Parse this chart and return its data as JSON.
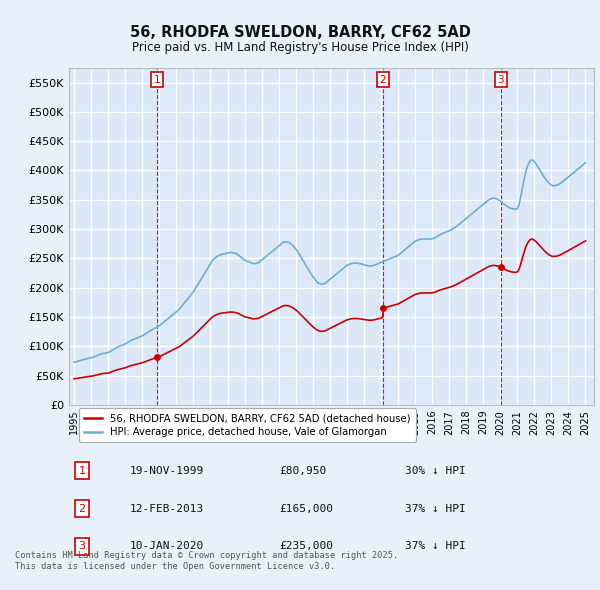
{
  "title": "56, RHODFA SWELDON, BARRY, CF62 5AD",
  "subtitle": "Price paid vs. HM Land Registry's House Price Index (HPI)",
  "background_color": "#e8f0fa",
  "plot_bg_color": "#dce8f8",
  "grid_color": "#ffffff",
  "hpi_color": "#6aaed6",
  "price_color": "#cc0000",
  "vline_color": "#cc0000",
  "ylim": [
    0,
    575000
  ],
  "yticks": [
    0,
    50000,
    100000,
    150000,
    200000,
    250000,
    300000,
    350000,
    400000,
    450000,
    500000,
    550000
  ],
  "xlim_start": 1994.7,
  "xlim_end": 2025.5,
  "xticks": [
    1995,
    1996,
    1997,
    1998,
    1999,
    2000,
    2001,
    2002,
    2003,
    2004,
    2005,
    2006,
    2007,
    2008,
    2009,
    2010,
    2011,
    2012,
    2013,
    2014,
    2015,
    2016,
    2017,
    2018,
    2019,
    2020,
    2021,
    2022,
    2023,
    2024,
    2025
  ],
  "sale_dates": [
    1999.88,
    2013.12,
    2020.03
  ],
  "sale_prices": [
    80950,
    165000,
    235000
  ],
  "sale_labels": [
    "1",
    "2",
    "3"
  ],
  "legend_label_price": "56, RHODFA SWELDON, BARRY, CF62 5AD (detached house)",
  "legend_label_hpi": "HPI: Average price, detached house, Vale of Glamorgan",
  "table_rows": [
    [
      "1",
      "19-NOV-1999",
      "£80,950",
      "30% ↓ HPI"
    ],
    [
      "2",
      "12-FEB-2013",
      "£165,000",
      "37% ↓ HPI"
    ],
    [
      "3",
      "10-JAN-2020",
      "£235,000",
      "37% ↓ HPI"
    ]
  ],
  "footer": "Contains HM Land Registry data © Crown copyright and database right 2025.\nThis data is licensed under the Open Government Licence v3.0.",
  "hpi_x": [
    1995.0,
    1995.083,
    1995.167,
    1995.25,
    1995.333,
    1995.417,
    1995.5,
    1995.583,
    1995.667,
    1995.75,
    1995.833,
    1995.917,
    1996.0,
    1996.083,
    1996.167,
    1996.25,
    1996.333,
    1996.417,
    1996.5,
    1996.583,
    1996.667,
    1996.75,
    1996.833,
    1996.917,
    1997.0,
    1997.083,
    1997.167,
    1997.25,
    1997.333,
    1997.417,
    1997.5,
    1997.583,
    1997.667,
    1997.75,
    1997.833,
    1997.917,
    1998.0,
    1998.083,
    1998.167,
    1998.25,
    1998.333,
    1998.417,
    1998.5,
    1998.583,
    1998.667,
    1998.75,
    1998.833,
    1998.917,
    1999.0,
    1999.083,
    1999.167,
    1999.25,
    1999.333,
    1999.417,
    1999.5,
    1999.583,
    1999.667,
    1999.75,
    1999.833,
    1999.917,
    2000.0,
    2000.083,
    2000.167,
    2000.25,
    2000.333,
    2000.417,
    2000.5,
    2000.583,
    2000.667,
    2000.75,
    2000.833,
    2000.917,
    2001.0,
    2001.083,
    2001.167,
    2001.25,
    2001.333,
    2001.417,
    2001.5,
    2001.583,
    2001.667,
    2001.75,
    2001.833,
    2001.917,
    2002.0,
    2002.083,
    2002.167,
    2002.25,
    2002.333,
    2002.417,
    2002.5,
    2002.583,
    2002.667,
    2002.75,
    2002.833,
    2002.917,
    2003.0,
    2003.083,
    2003.167,
    2003.25,
    2003.333,
    2003.417,
    2003.5,
    2003.583,
    2003.667,
    2003.75,
    2003.833,
    2003.917,
    2004.0,
    2004.083,
    2004.167,
    2004.25,
    2004.333,
    2004.417,
    2004.5,
    2004.583,
    2004.667,
    2004.75,
    2004.833,
    2004.917,
    2005.0,
    2005.083,
    2005.167,
    2005.25,
    2005.333,
    2005.417,
    2005.5,
    2005.583,
    2005.667,
    2005.75,
    2005.833,
    2005.917,
    2006.0,
    2006.083,
    2006.167,
    2006.25,
    2006.333,
    2006.417,
    2006.5,
    2006.583,
    2006.667,
    2006.75,
    2006.833,
    2006.917,
    2007.0,
    2007.083,
    2007.167,
    2007.25,
    2007.333,
    2007.417,
    2007.5,
    2007.583,
    2007.667,
    2007.75,
    2007.833,
    2007.917,
    2008.0,
    2008.083,
    2008.167,
    2008.25,
    2008.333,
    2008.417,
    2008.5,
    2008.583,
    2008.667,
    2008.75,
    2008.833,
    2008.917,
    2009.0,
    2009.083,
    2009.167,
    2009.25,
    2009.333,
    2009.417,
    2009.5,
    2009.583,
    2009.667,
    2009.75,
    2009.833,
    2009.917,
    2010.0,
    2010.083,
    2010.167,
    2010.25,
    2010.333,
    2010.417,
    2010.5,
    2010.583,
    2010.667,
    2010.75,
    2010.833,
    2010.917,
    2011.0,
    2011.083,
    2011.167,
    2011.25,
    2011.333,
    2011.417,
    2011.5,
    2011.583,
    2011.667,
    2011.75,
    2011.833,
    2011.917,
    2012.0,
    2012.083,
    2012.167,
    2012.25,
    2012.333,
    2012.417,
    2012.5,
    2012.583,
    2012.667,
    2012.75,
    2012.833,
    2012.917,
    2013.0,
    2013.083,
    2013.167,
    2013.25,
    2013.333,
    2013.417,
    2013.5,
    2013.583,
    2013.667,
    2013.75,
    2013.833,
    2013.917,
    2014.0,
    2014.083,
    2014.167,
    2014.25,
    2014.333,
    2014.417,
    2014.5,
    2014.583,
    2014.667,
    2014.75,
    2014.833,
    2014.917,
    2015.0,
    2015.083,
    2015.167,
    2015.25,
    2015.333,
    2015.417,
    2015.5,
    2015.583,
    2015.667,
    2015.75,
    2015.833,
    2015.917,
    2016.0,
    2016.083,
    2016.167,
    2016.25,
    2016.333,
    2016.417,
    2016.5,
    2016.583,
    2016.667,
    2016.75,
    2016.833,
    2016.917,
    2017.0,
    2017.083,
    2017.167,
    2017.25,
    2017.333,
    2017.417,
    2017.5,
    2017.583,
    2017.667,
    2017.75,
    2017.833,
    2017.917,
    2018.0,
    2018.083,
    2018.167,
    2018.25,
    2018.333,
    2018.417,
    2018.5,
    2018.583,
    2018.667,
    2018.75,
    2018.833,
    2018.917,
    2019.0,
    2019.083,
    2019.167,
    2019.25,
    2019.333,
    2019.417,
    2019.5,
    2019.583,
    2019.667,
    2019.75,
    2019.833,
    2019.917,
    2020.0,
    2020.083,
    2020.167,
    2020.25,
    2020.333,
    2020.417,
    2020.5,
    2020.583,
    2020.667,
    2020.75,
    2020.833,
    2020.917,
    2021.0,
    2021.083,
    2021.167,
    2021.25,
    2021.333,
    2021.417,
    2021.5,
    2021.583,
    2021.667,
    2021.75,
    2021.833,
    2021.917,
    2022.0,
    2022.083,
    2022.167,
    2022.25,
    2022.333,
    2022.417,
    2022.5,
    2022.583,
    2022.667,
    2022.75,
    2022.833,
    2022.917,
    2023.0,
    2023.083,
    2023.167,
    2023.25,
    2023.333,
    2023.417,
    2023.5,
    2023.583,
    2023.667,
    2023.75,
    2023.833,
    2023.917,
    2024.0,
    2024.083,
    2024.167,
    2024.25,
    2024.333,
    2024.417,
    2024.5,
    2024.583,
    2024.667,
    2024.75,
    2024.833,
    2024.917,
    2025.0
  ],
  "hpi_y": [
    73000,
    73500,
    74000,
    74800,
    75500,
    76200,
    77000,
    77500,
    78000,
    79000,
    79500,
    80000,
    80500,
    81000,
    82000,
    83000,
    84000,
    85000,
    86000,
    87000,
    87500,
    88000,
    88500,
    89000,
    89500,
    90500,
    92000,
    93500,
    95000,
    96500,
    98000,
    99000,
    100000,
    101000,
    102000,
    103000,
    104000,
    105500,
    107000,
    108500,
    110000,
    111000,
    112000,
    113000,
    114000,
    115000,
    116000,
    117000,
    118000,
    119500,
    121000,
    122500,
    124000,
    125500,
    127000,
    128500,
    130000,
    131000,
    132000,
    133500,
    135000,
    137000,
    139000,
    141000,
    143000,
    145000,
    147000,
    149000,
    151000,
    153000,
    155000,
    157000,
    159000,
    161000,
    163000,
    166000,
    169000,
    172000,
    175000,
    178000,
    181000,
    184000,
    187000,
    190000,
    193000,
    197000,
    201000,
    205000,
    209000,
    213000,
    217000,
    221000,
    225000,
    229000,
    233000,
    237000,
    241000,
    245000,
    248000,
    250000,
    252000,
    254000,
    255000,
    256000,
    257000,
    257500,
    258000,
    258500,
    259000,
    259500,
    260000,
    260000,
    259500,
    259000,
    258000,
    257000,
    255000,
    253000,
    251000,
    249000,
    247000,
    246000,
    245000,
    244000,
    243000,
    242000,
    241000,
    241000,
    241500,
    242000,
    243000,
    245000,
    247000,
    249000,
    251000,
    253000,
    255000,
    257000,
    259000,
    261000,
    263000,
    265000,
    267000,
    269000,
    271000,
    273000,
    275000,
    277000,
    278000,
    278500,
    278000,
    277000,
    276000,
    274000,
    272000,
    269000,
    266000,
    263000,
    259000,
    255000,
    251000,
    247000,
    243000,
    239000,
    235000,
    231000,
    227000,
    223000,
    219000,
    216000,
    213000,
    210000,
    208000,
    207000,
    206000,
    206000,
    207000,
    208000,
    210000,
    212000,
    214000,
    216000,
    218000,
    220000,
    222000,
    224000,
    226000,
    228000,
    230000,
    232000,
    234000,
    236000,
    238000,
    239000,
    240000,
    241000,
    241500,
    242000,
    242000,
    242000,
    241500,
    241000,
    240500,
    240000,
    239000,
    238500,
    238000,
    237500,
    237000,
    237000,
    237500,
    238000,
    239000,
    240000,
    241000,
    242000,
    243000,
    244000,
    245000,
    246000,
    247000,
    248000,
    249000,
    250000,
    251000,
    252000,
    253000,
    254000,
    255000,
    257000,
    259000,
    261000,
    263000,
    265000,
    267000,
    269000,
    271000,
    273000,
    275000,
    277000,
    279000,
    280000,
    281000,
    282000,
    282500,
    283000,
    283000,
    283000,
    283000,
    283000,
    283000,
    283000,
    283500,
    284000,
    285000,
    286500,
    288000,
    289500,
    291000,
    292000,
    293000,
    294000,
    295000,
    296000,
    297000,
    298000,
    299500,
    301000,
    302500,
    304000,
    306000,
    308000,
    310000,
    312000,
    314000,
    316000,
    318000,
    320000,
    322000,
    324000,
    326000,
    328000,
    330000,
    332000,
    334000,
    336000,
    338000,
    340000,
    342000,
    344000,
    346000,
    348000,
    350000,
    351000,
    352000,
    352500,
    352500,
    352000,
    351000,
    349500,
    347500,
    346000,
    344000,
    342000,
    340000,
    338500,
    337000,
    336000,
    335000,
    334500,
    334000,
    334000,
    335000,
    340000,
    350000,
    363000,
    375000,
    387000,
    398000,
    406000,
    412000,
    416000,
    418000,
    417000,
    415000,
    412000,
    408000,
    404000,
    400000,
    396000,
    392000,
    388500,
    385000,
    382000,
    379000,
    377000,
    375000,
    374000,
    374000,
    374500,
    375000,
    376000,
    377500,
    379000,
    381000,
    383000,
    385000,
    387000,
    389000,
    391000,
    393000,
    395000,
    397000,
    399000,
    401000,
    403000,
    405000,
    407000,
    409000,
    411000,
    413000
  ]
}
